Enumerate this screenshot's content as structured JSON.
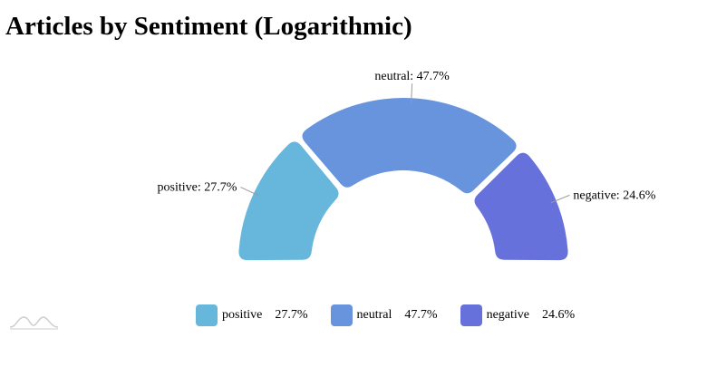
{
  "chart_data": {
    "type": "pie",
    "variant": "semicircle-donut",
    "title": "Articles by Sentiment (Logarithmic)",
    "slices": [
      {
        "name": "positive",
        "value": 27.7,
        "label": "positive: 27.7%",
        "legend_value": "27.7%",
        "color": "#67b7dc"
      },
      {
        "name": "neutral",
        "value": 47.7,
        "label": "neutral: 47.7%",
        "legend_value": "47.7%",
        "color": "#6794dc"
      },
      {
        "name": "negative",
        "value": 24.6,
        "label": "negative: 24.6%",
        "legend_value": "24.6%",
        "color": "#6771dc"
      }
    ],
    "legend_position": "bottom"
  },
  "colors": {
    "label_tick": "#9a9a9a",
    "logo": "#cccccc"
  },
  "icons": {
    "brand_logo": "chart-library-watermark-icon"
  }
}
